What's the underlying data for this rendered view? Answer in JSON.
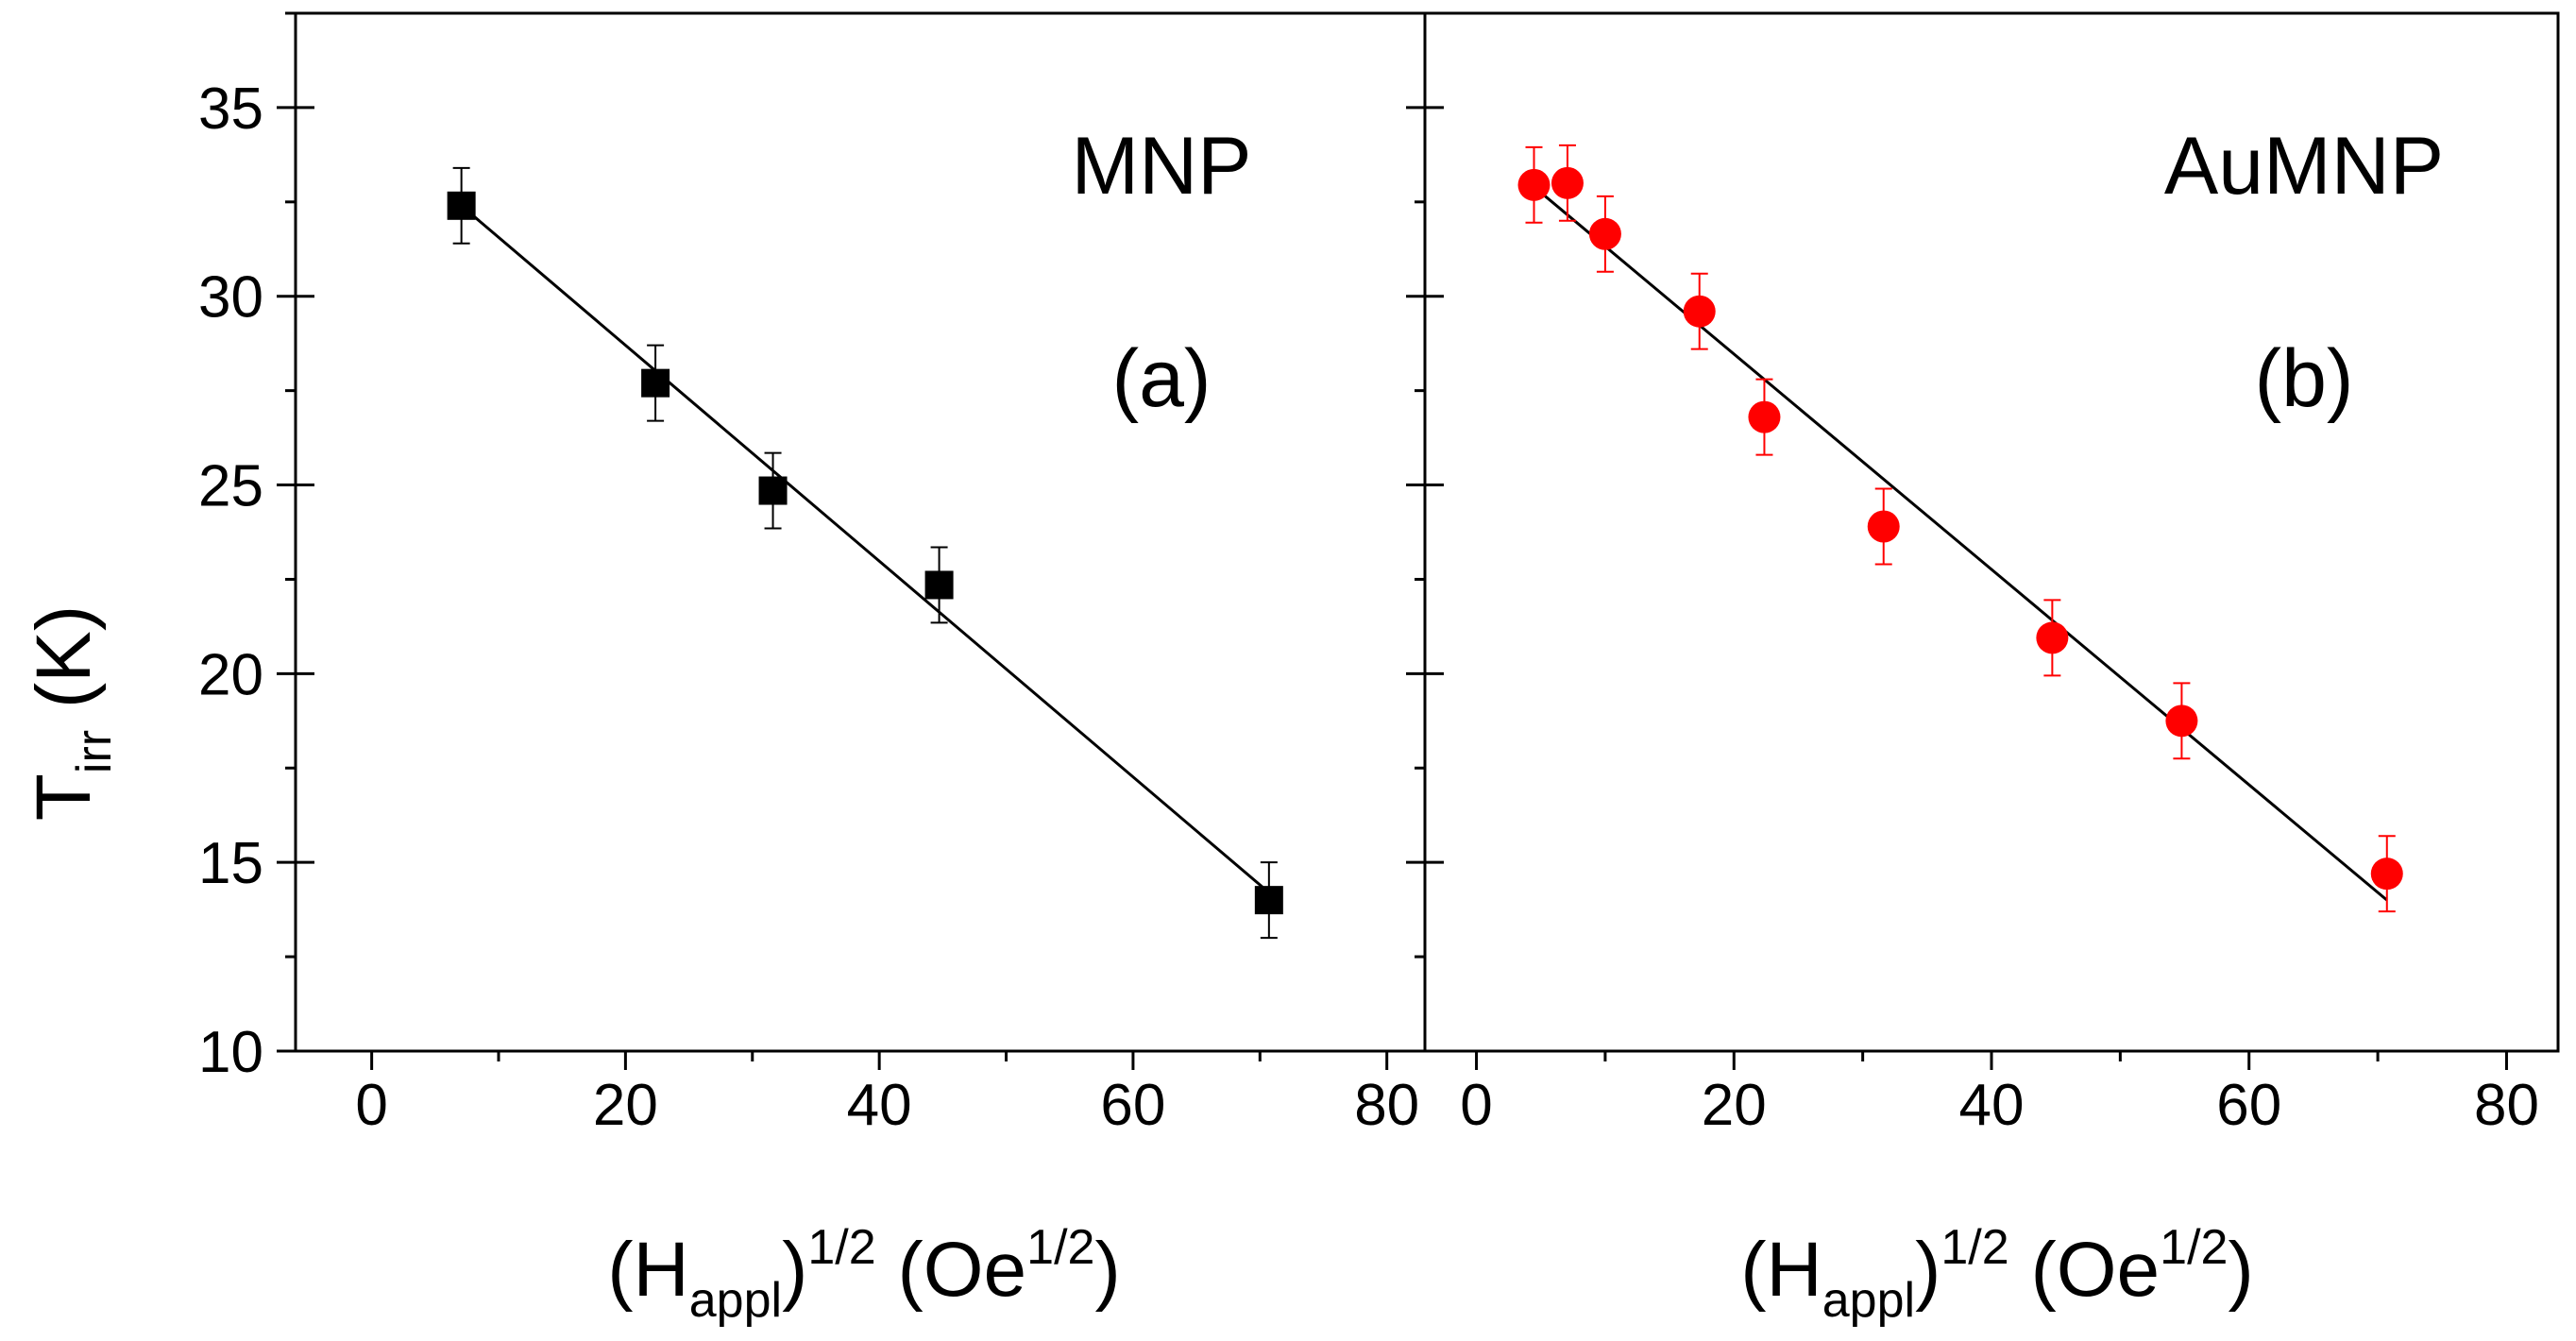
{
  "chart_data": [
    {
      "type": "scatter",
      "panel": "(a)",
      "sample_label": "MNP",
      "xlim": [
        -6,
        83
      ],
      "ylim": [
        10,
        37.5
      ],
      "x_ticks": [
        0,
        20,
        40,
        60,
        80
      ],
      "y_ticks": [
        10,
        15,
        20,
        25,
        30,
        35
      ],
      "x_tick_labels": [
        "0",
        "20",
        "40",
        "60",
        "80"
      ],
      "y_tick_labels": [
        "10",
        "15",
        "20",
        "25",
        "30",
        "35"
      ],
      "ylabel": {
        "main": "T",
        "sub": "irr",
        "unit": " (K)"
      },
      "xlabel": {
        "open": "(H",
        "sub": "appl",
        "close": ")",
        "sup": "1/2",
        "unit": " (Oe",
        "unit_sup": "1/2",
        "unit_close": ")"
      },
      "marker": "square",
      "color": "#000000",
      "points": [
        {
          "x": 7.07,
          "y": 32.4,
          "err": 1.0
        },
        {
          "x": 22.36,
          "y": 27.7,
          "err": 1.0
        },
        {
          "x": 31.62,
          "y": 24.85,
          "err": 1.0
        },
        {
          "x": 44.72,
          "y": 22.35,
          "err": 1.0
        },
        {
          "x": 70.71,
          "y": 14.0,
          "err": 1.0
        }
      ],
      "fit_line": {
        "x": [
          7.07,
          70.71
        ],
        "y": [
          32.4,
          14.2
        ]
      }
    },
    {
      "type": "scatter",
      "panel": "(b)",
      "sample_label": "AuMNP",
      "xlim": [
        -4,
        84
      ],
      "ylim": [
        10,
        37.5
      ],
      "x_ticks": [
        0,
        20,
        40,
        60,
        80
      ],
      "y_ticks": [
        10,
        15,
        20,
        25,
        30,
        35
      ],
      "x_tick_labels": [
        "0",
        "20",
        "40",
        "60",
        "80"
      ],
      "y_tick_labels": [],
      "xlabel": {
        "open": "(H",
        "sub": "appl",
        "close": ")",
        "sup": "1/2",
        "unit": " (Oe",
        "unit_sup": "1/2",
        "unit_close": ")"
      },
      "marker": "circle",
      "color": "#ff0000",
      "points": [
        {
          "x": 4.47,
          "y": 32.95,
          "err": 1.0
        },
        {
          "x": 7.07,
          "y": 33.0,
          "err": 1.0
        },
        {
          "x": 10.0,
          "y": 31.65,
          "err": 1.0
        },
        {
          "x": 17.32,
          "y": 29.6,
          "err": 1.0
        },
        {
          "x": 22.36,
          "y": 26.8,
          "err": 1.0
        },
        {
          "x": 31.62,
          "y": 23.9,
          "err": 1.0
        },
        {
          "x": 44.72,
          "y": 20.95,
          "err": 1.0
        },
        {
          "x": 54.77,
          "y": 18.75,
          "err": 1.0
        },
        {
          "x": 70.71,
          "y": 14.7,
          "err": 1.0
        }
      ],
      "fit_line": {
        "x": [
          4.47,
          70.71
        ],
        "y": [
          32.9,
          14.0
        ]
      }
    }
  ]
}
